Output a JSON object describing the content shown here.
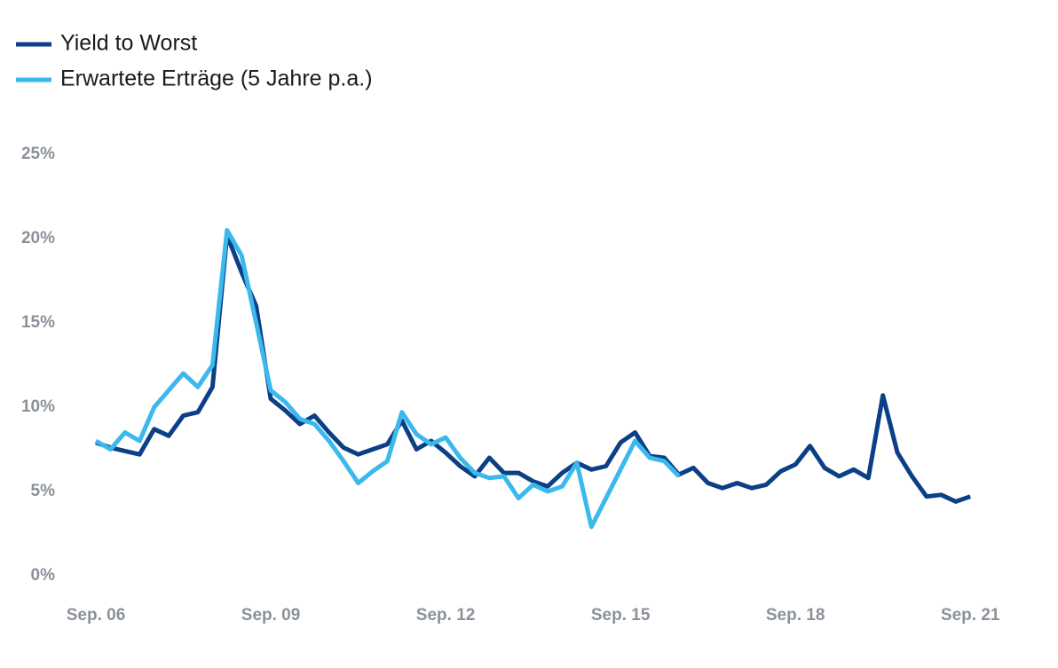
{
  "chart_data": {
    "type": "line",
    "categories": [
      "Sep. 06",
      null,
      null,
      null,
      null,
      null,
      null,
      null,
      null,
      null,
      null,
      null,
      "Sep. 09",
      null,
      null,
      null,
      null,
      null,
      null,
      null,
      null,
      null,
      null,
      null,
      "Sep. 12",
      null,
      null,
      null,
      null,
      null,
      null,
      null,
      null,
      null,
      null,
      null,
      "Sep. 15",
      null,
      null,
      null,
      null,
      null,
      null,
      null,
      null,
      null,
      null,
      null,
      "Sep. 18",
      null,
      null,
      null,
      null,
      null,
      null,
      null,
      null,
      null,
      null,
      null,
      "Sep. 21"
    ],
    "series": [
      {
        "name": "Yield to Worst",
        "color": "#0b3f86",
        "values": [
          7.9,
          7.6,
          7.4,
          7.2,
          8.7,
          8.3,
          9.5,
          9.7,
          11.2,
          20.2,
          18.0,
          16.0,
          10.5,
          9.8,
          9.0,
          9.5,
          8.5,
          7.6,
          7.2,
          7.5,
          7.8,
          9.2,
          7.5,
          8.0,
          7.3,
          6.5,
          5.9,
          7.0,
          6.1,
          6.1,
          5.6,
          5.3,
          6.1,
          6.7,
          6.3,
          6.5,
          7.9,
          8.5,
          7.1,
          7.0,
          6.0,
          6.4,
          5.5,
          5.2,
          5.5,
          5.2,
          5.4,
          6.2,
          6.6,
          7.7,
          6.4,
          5.9,
          6.3,
          5.8,
          10.7,
          7.3,
          5.9,
          4.7,
          4.8,
          4.4,
          4.7
        ]
      },
      {
        "name": "Erwartete Erträge (5 Jahre p.a.)",
        "color": "#3bb9ec",
        "values": [
          8.0,
          7.5,
          8.5,
          8.0,
          10.0,
          11.0,
          12.0,
          11.2,
          12.5,
          20.5,
          19.0,
          15.0,
          11.0,
          10.3,
          9.3,
          9.0,
          8.0,
          6.8,
          5.5,
          6.2,
          6.8,
          9.7,
          8.4,
          7.8,
          8.2,
          7.0,
          6.1,
          5.8,
          5.9,
          4.6,
          5.4,
          5.0,
          5.3,
          6.7,
          2.9,
          4.6,
          6.3,
          8.0,
          7.0,
          6.8,
          5.9,
          null,
          null,
          null,
          null,
          null,
          null,
          null,
          null,
          null,
          null,
          null,
          null,
          null,
          null,
          null,
          null,
          null,
          null,
          null,
          null
        ]
      }
    ],
    "ylim": [
      0,
      25
    ],
    "yticks": [
      {
        "value": 0,
        "label": "0%"
      },
      {
        "value": 5,
        "label": "5%"
      },
      {
        "value": 10,
        "label": "10%"
      },
      {
        "value": 15,
        "label": "15%"
      },
      {
        "value": 20,
        "label": "20%"
      },
      {
        "value": 25,
        "label": "25%"
      }
    ],
    "grid": false,
    "legend": "top-left"
  }
}
